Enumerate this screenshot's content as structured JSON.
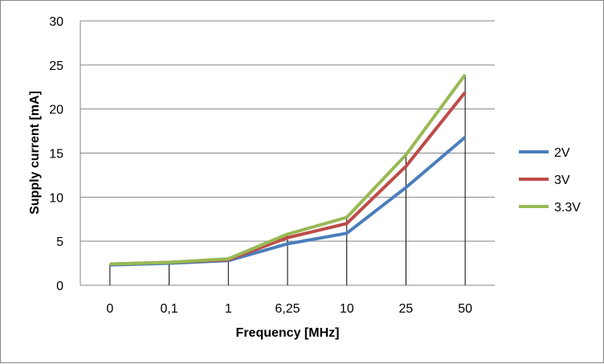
{
  "chart_data": {
    "type": "line",
    "title": "",
    "xlabel": "Frequency [MHz]",
    "ylabel": "Supply current [mA]",
    "categories": [
      "0",
      "0,1",
      "1",
      "6,25",
      "10",
      "25",
      "50"
    ],
    "ylim": [
      0,
      30
    ],
    "yticks": [
      0,
      5,
      10,
      15,
      20,
      25,
      30
    ],
    "grid": true,
    "legend_position": "right",
    "drop_lines": true,
    "series": [
      {
        "name": "2V",
        "color": "#4A7EBB",
        "values": [
          2.3,
          2.5,
          2.8,
          4.7,
          5.9,
          11.1,
          16.8
        ]
      },
      {
        "name": "3V",
        "color": "#BE4B48",
        "values": [
          2.4,
          2.6,
          2.9,
          5.4,
          7.0,
          13.5,
          21.9
        ]
      },
      {
        "name": "3.3V",
        "color": "#98B954",
        "values": [
          2.4,
          2.6,
          3.0,
          5.8,
          7.7,
          14.8,
          23.9
        ]
      }
    ]
  }
}
